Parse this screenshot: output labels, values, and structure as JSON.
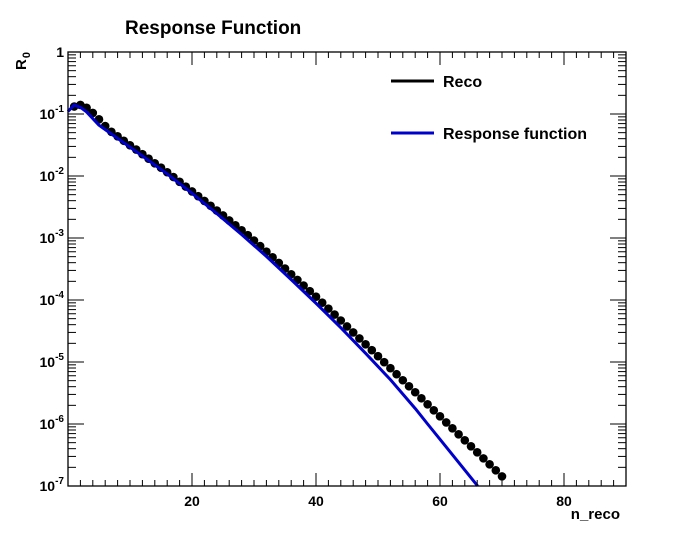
{
  "chart_data": {
    "type": "scatter",
    "title": "Response Function",
    "xlabel": "n_reco",
    "ylabel_base": "R",
    "ylabel_sub": "0",
    "xlim": [
      0,
      90
    ],
    "ylim": [
      1e-07,
      1
    ],
    "yscale": "log",
    "x_ticks": [
      20,
      40,
      60,
      80
    ],
    "y_ticks": [
      {
        "value": 1,
        "base": "1",
        "exp": ""
      },
      {
        "value": 0.1,
        "base": "10",
        "exp": "-1"
      },
      {
        "value": 0.01,
        "base": "10",
        "exp": "-2"
      },
      {
        "value": 0.001,
        "base": "10",
        "exp": "-3"
      },
      {
        "value": 0.0001,
        "base": "10",
        "exp": "-4"
      },
      {
        "value": 1e-05,
        "base": "10",
        "exp": "-5"
      },
      {
        "value": 1e-06,
        "base": "10",
        "exp": "-6"
      },
      {
        "value": 1e-07,
        "base": "10",
        "exp": "-7"
      }
    ],
    "grid": false,
    "legend_position": "top-right",
    "series": [
      {
        "name": "Reco",
        "style": "markers",
        "color": "#000000",
        "x": [
          1,
          2,
          3,
          4,
          5,
          6,
          7,
          8,
          9,
          10,
          11,
          12,
          13,
          14,
          15,
          16,
          17,
          18,
          19,
          20,
          21,
          22,
          23,
          24,
          25,
          26,
          27,
          28,
          29,
          30,
          31,
          32,
          33,
          34,
          35,
          36,
          37,
          38,
          39,
          40,
          41,
          42,
          43,
          44,
          45,
          46,
          47,
          48,
          49,
          50,
          51,
          52,
          53,
          54,
          55,
          56,
          57,
          58,
          59,
          60,
          61,
          62,
          63,
          64,
          65,
          66,
          67,
          68,
          69,
          70
        ],
        "y": [
          0.132,
          0.14,
          0.126,
          0.104,
          0.082,
          0.064,
          0.0516,
          0.0437,
          0.037,
          0.0313,
          0.0267,
          0.0225,
          0.019,
          0.016,
          0.0136,
          0.0115,
          0.00963,
          0.00806,
          0.00674,
          0.00564,
          0.00473,
          0.00396,
          0.00331,
          0.00277,
          0.00231,
          0.00192,
          0.0016,
          0.00133,
          0.00111,
          0.00091,
          0.00074,
          0.000601,
          0.000488,
          0.000396,
          0.000321,
          0.00026,
          0.000211,
          0.000171,
          0.000139,
          0.000113,
          9.05e-05,
          7.26e-05,
          5.82e-05,
          4.67e-05,
          3.74e-05,
          3e-05,
          2.4e-05,
          1.93e-05,
          1.55e-05,
          1.24e-05,
          9.93e-06,
          7.94e-06,
          6.35e-06,
          5.08e-06,
          4.06e-06,
          3.25e-06,
          2.6e-06,
          2.08e-06,
          1.66e-06,
          1.33e-06,
          1.06e-06,
          8.53e-07,
          6.82e-07,
          5.46e-07,
          4.37e-07,
          3.49e-07,
          2.79e-07,
          2.24e-07,
          1.79e-07,
          1.43e-07
        ]
      },
      {
        "name": "Response function",
        "style": "line",
        "color": "#0000cc",
        "x": [
          0,
          1,
          2,
          3,
          5,
          8,
          12,
          16,
          20,
          24,
          28,
          32,
          36,
          40,
          44,
          48,
          52,
          56,
          58,
          60,
          62,
          64,
          66,
          67
        ],
        "y": [
          0.11,
          0.14,
          0.128,
          0.108,
          0.066,
          0.0405,
          0.021,
          0.0108,
          0.00525,
          0.00247,
          0.00114,
          0.000505,
          0.000213,
          8.87e-05,
          3.57e-05,
          1.38e-05,
          5.2e-06,
          1.78e-06,
          1e-06,
          5.65e-07,
          3.2e-07,
          1.81e-07,
          1.02e-07,
          7e-08
        ]
      }
    ]
  }
}
